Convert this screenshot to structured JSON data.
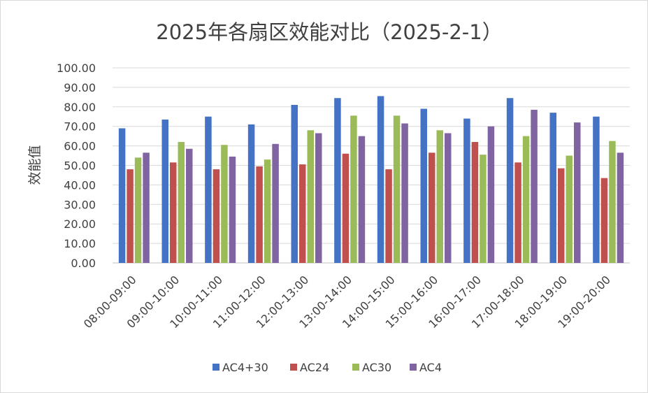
{
  "chart_data": {
    "type": "bar",
    "title": "2025年各扇区效能对比（2025-2-1）",
    "xlabel": "",
    "ylabel": "效能值",
    "ylim": [
      0,
      100
    ],
    "ytick_step": 10,
    "ytick_format": "0.00",
    "grid": true,
    "legend_position": "bottom",
    "categories": [
      "08:00-09:00",
      "09:00-10:00",
      "10:00-11:00",
      "11:00-12:00",
      "12:00-13:00",
      "13:00-14:00",
      "14:00-15:00",
      "15:00-16:00",
      "16:00-17:00",
      "17:00-18:00",
      "18:00-19:00",
      "19:00-20:00"
    ],
    "series": [
      {
        "name": "AC4+30",
        "color": "#4472c4",
        "values": [
          69,
          73.5,
          75,
          71,
          81,
          84.5,
          85.5,
          79,
          74,
          84.5,
          77,
          75
        ]
      },
      {
        "name": "AC24",
        "color": "#c0504d",
        "values": [
          48,
          51.5,
          48,
          49.5,
          50.5,
          56,
          48,
          56.5,
          62,
          51.5,
          48.5,
          43.5
        ]
      },
      {
        "name": "AC30",
        "color": "#9bbb59",
        "values": [
          54,
          62,
          60.5,
          53,
          68,
          75.5,
          75.5,
          68,
          55.5,
          65,
          55,
          62.5
        ]
      },
      {
        "name": "AC4",
        "color": "#8064a2",
        "values": [
          56.5,
          58.5,
          54.5,
          61,
          66.5,
          65,
          71.5,
          66.5,
          70,
          78.5,
          72,
          56.5
        ]
      }
    ]
  }
}
